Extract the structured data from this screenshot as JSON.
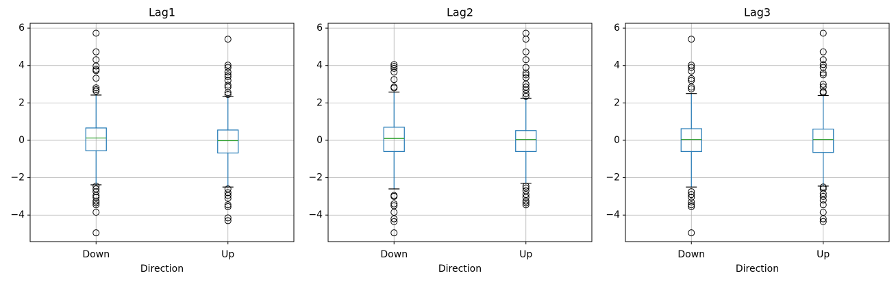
{
  "chart_data": [
    {
      "type": "box",
      "title": "Lag1",
      "x_label": "Direction",
      "categories": [
        "Down",
        "Up"
      ],
      "box_color": "#1f77b4",
      "median_color": "#2ca02c",
      "grid": true,
      "xlim": [
        0.5,
        2.5
      ],
      "ylim": [
        -5.42,
        6.26
      ],
      "yticks": [
        {
          "value": -4,
          "label": "−4"
        },
        {
          "value": -2,
          "label": "−2"
        },
        0,
        2,
        4,
        6
      ],
      "boxes": [
        {
          "whislo": -2.38,
          "q1": -0.56,
          "median": 0.12,
          "q3": 0.66,
          "whishi": 2.42,
          "fliers": [
            5.73,
            4.73,
            4.31,
            3.97,
            3.79,
            3.72,
            3.32,
            2.81,
            2.71,
            2.63,
            -2.45,
            -2.6,
            -2.75,
            -2.95,
            -3.05,
            -3.25,
            -3.35,
            -3.45,
            -3.85,
            -4.95
          ]
        },
        {
          "whislo": -2.5,
          "q1": -0.68,
          "median": -0.02,
          "q3": 0.55,
          "whishi": 2.35,
          "fliers": [
            5.41,
            4.02,
            3.9,
            3.65,
            3.5,
            3.4,
            3.2,
            2.95,
            2.85,
            2.55,
            2.45,
            -2.6,
            -2.8,
            -2.95,
            -3.1,
            -3.45,
            -3.55,
            -4.15,
            -4.3
          ]
        }
      ]
    },
    {
      "type": "box",
      "title": "Lag2",
      "x_label": "Direction",
      "categories": [
        "Down",
        "Up"
      ],
      "box_color": "#1f77b4",
      "median_color": "#2ca02c",
      "grid": true,
      "xlim": [
        0.5,
        2.5
      ],
      "ylim": [
        -5.42,
        6.26
      ],
      "yticks": [
        {
          "value": -4,
          "label": "−4"
        },
        {
          "value": -2,
          "label": "−2"
        },
        0,
        2,
        4,
        6
      ],
      "boxes": [
        {
          "whislo": -2.6,
          "q1": -0.6,
          "median": 0.1,
          "q3": 0.7,
          "whishi": 2.58,
          "fliers": [
            4.05,
            3.95,
            3.85,
            3.65,
            3.25,
            2.85,
            2.8,
            -2.95,
            -3.0,
            -3.4,
            -3.5,
            -3.85,
            -4.2,
            -4.35,
            -4.95
          ]
        },
        {
          "whislo": -2.3,
          "q1": -0.6,
          "median": 0.05,
          "q3": 0.52,
          "whishi": 2.25,
          "fliers": [
            5.73,
            5.41,
            4.73,
            4.31,
            3.9,
            3.6,
            3.5,
            3.35,
            3.0,
            2.85,
            2.7,
            2.5,
            2.35,
            -2.45,
            -2.55,
            -2.7,
            -2.9,
            -3.05,
            -3.25,
            -3.35,
            -3.45
          ]
        }
      ]
    },
    {
      "type": "box",
      "title": "Lag3",
      "x_label": "Direction",
      "categories": [
        "Down",
        "Up"
      ],
      "box_color": "#1f77b4",
      "median_color": "#2ca02c",
      "grid": true,
      "xlim": [
        0.5,
        2.5
      ],
      "ylim": [
        -5.42,
        6.26
      ],
      "yticks": [
        {
          "value": -4,
          "label": "−4"
        },
        {
          "value": -2,
          "label": "−2"
        },
        0,
        2,
        4,
        6
      ],
      "boxes": [
        {
          "whislo": -2.5,
          "q1": -0.6,
          "median": 0.05,
          "q3": 0.62,
          "whishi": 2.5,
          "fliers": [
            5.41,
            4.02,
            3.9,
            3.7,
            3.3,
            3.2,
            2.85,
            2.75,
            -2.75,
            -2.9,
            -3.05,
            -3.3,
            -3.45,
            -3.55,
            -4.95
          ]
        },
        {
          "whislo": -2.45,
          "q1": -0.65,
          "median": 0.05,
          "q3": 0.6,
          "whishi": 2.4,
          "fliers": [
            5.73,
            4.73,
            4.31,
            4.05,
            3.9,
            3.6,
            3.5,
            3.0,
            2.85,
            2.6,
            2.55,
            -2.5,
            -2.6,
            -2.85,
            -3.0,
            -3.2,
            -3.45,
            -3.85,
            -4.2,
            -4.35
          ]
        }
      ]
    }
  ]
}
